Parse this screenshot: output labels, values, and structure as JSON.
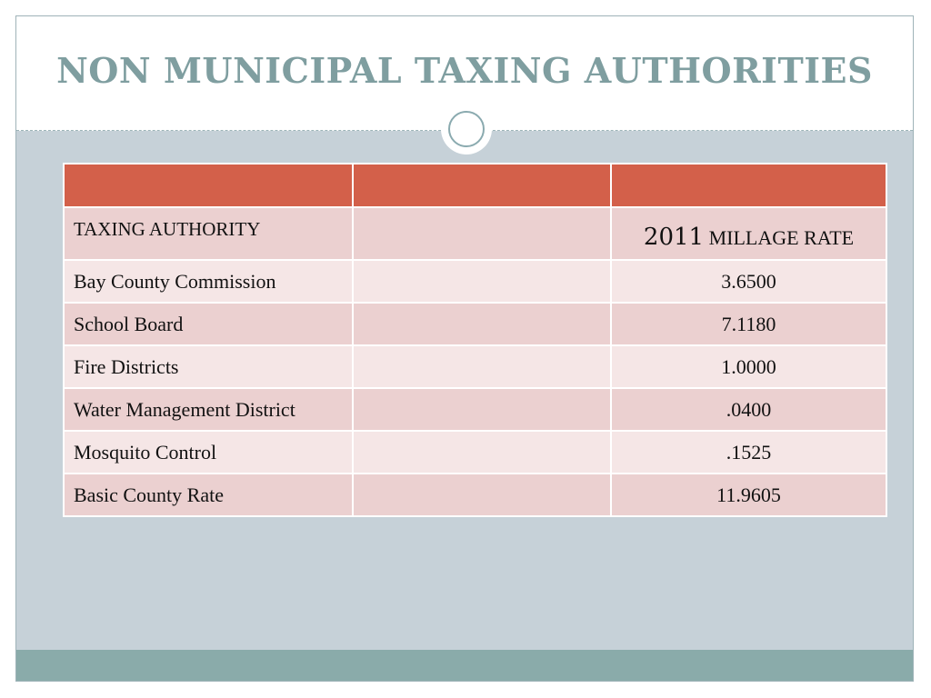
{
  "slide": {
    "title": "NON MUNICIPAL TAXING AUTHORITIES"
  },
  "table": {
    "header": {
      "taxing_authority": "TAXING AUTHORITY",
      "rate_year": "2011",
      "rate_label": "MILLAGE RATE"
    },
    "rows": [
      {
        "authority": "Bay County Commission",
        "rate": "3.6500"
      },
      {
        "authority": "School Board",
        "rate": "7.1180"
      },
      {
        "authority": "Fire Districts",
        "rate": "1.0000"
      },
      {
        "authority": "Water Management District",
        "rate": ".0400"
      },
      {
        "authority": "Mosquito Control",
        "rate": ".1525"
      },
      {
        "authority": "Basic County Rate",
        "rate": "11.9605"
      }
    ]
  },
  "colors": {
    "title": "#7f9ea0",
    "header_band": "#d3604a",
    "row_dark": "#ebd0d0",
    "row_light": "#f5e6e6",
    "background": "#c6d1d8",
    "footer": "#8aabaa"
  }
}
